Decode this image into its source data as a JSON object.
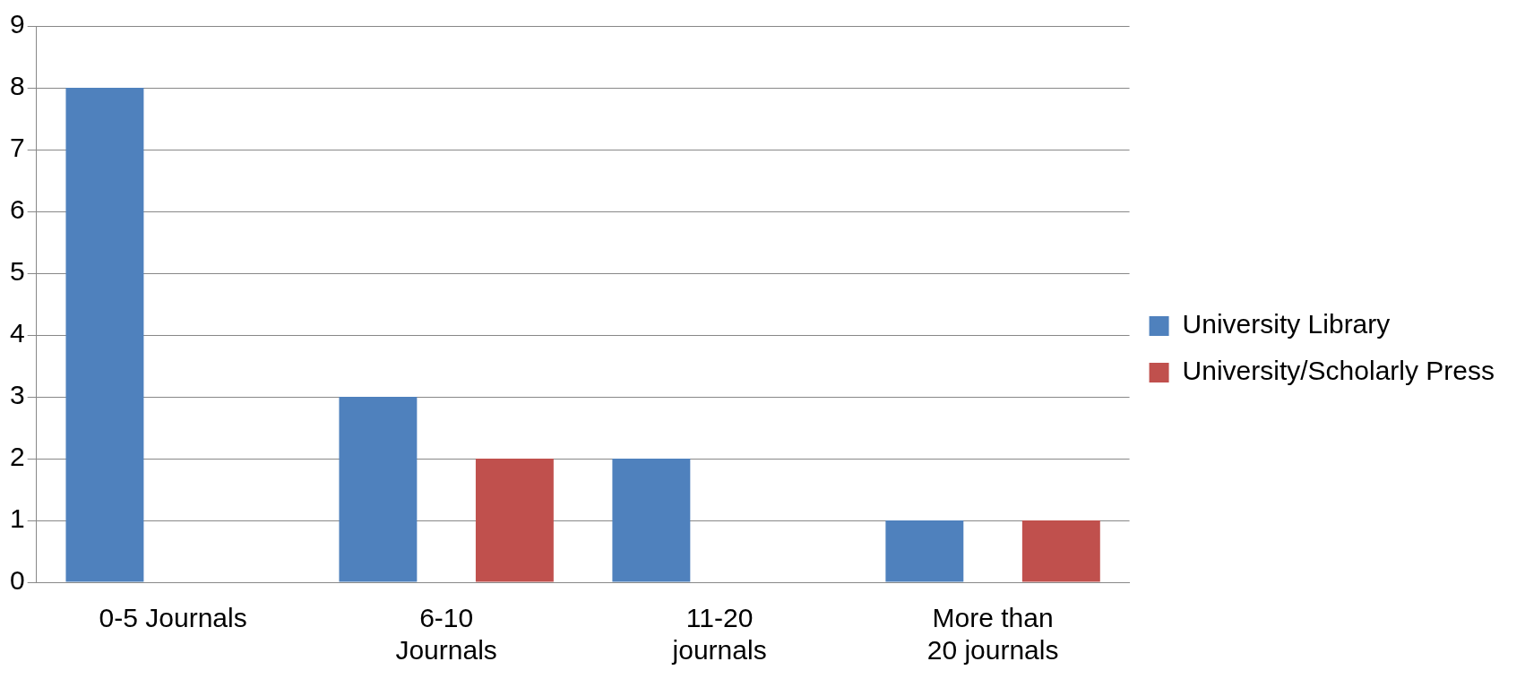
{
  "chart_data": {
    "type": "bar",
    "categories": [
      "0-5 Journals",
      "6-10 Journals",
      "11-20 journals",
      "More than 20 journals"
    ],
    "series": [
      {
        "name": "University Library",
        "color": "#4f81bd",
        "values": [
          8,
          3,
          2,
          1
        ]
      },
      {
        "name": "University/Scholarly Press",
        "color": "#c0504d",
        "values": [
          0,
          2,
          0,
          1
        ]
      }
    ],
    "ylim": [
      0,
      9
    ],
    "yticks": [
      0,
      1,
      2,
      3,
      4,
      5,
      6,
      7,
      8,
      9
    ],
    "grid": "y",
    "legend": "right"
  }
}
